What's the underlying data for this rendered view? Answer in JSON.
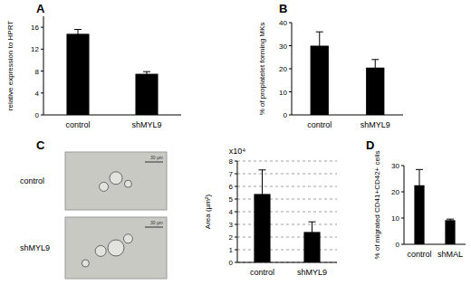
{
  "panel_labels": [
    "A",
    "B",
    "C",
    "D"
  ],
  "micrographs": {
    "labels": [
      "control",
      "shMYL9"
    ],
    "scale_bar": "30 µm"
  },
  "chart_data": [
    {
      "type": "bar",
      "y_label": "relative expression to HPRT",
      "categories": [
        "control",
        "shMYL9"
      ],
      "values": [
        14.8,
        7.5
      ],
      "errors": [
        0.8,
        0.4
      ],
      "color": "#000000",
      "ylim": [
        0,
        18
      ],
      "yticks": [
        0,
        4,
        8,
        12,
        16
      ],
      "grid": false
    },
    {
      "type": "bar",
      "y_label": "% of proplatelet forming MKs",
      "categories": [
        "control",
        "shMYL9"
      ],
      "values": [
        30,
        20.5
      ],
      "errors": [
        6,
        3.5
      ],
      "color": "#000000",
      "ylim": [
        0,
        40
      ],
      "yticks": [
        0,
        10,
        20,
        30,
        40
      ],
      "grid": false
    },
    {
      "type": "bar",
      "y_label": "Area (µm²)",
      "annotation": "x10⁴",
      "categories": [
        "control",
        "shMYL9"
      ],
      "values": [
        5.4,
        2.4
      ],
      "errors": [
        1.9,
        0.8
      ],
      "color": "#000000",
      "ylim": [
        0,
        8
      ],
      "yticks": [
        0,
        1,
        2,
        3,
        4,
        5,
        6,
        7,
        8
      ],
      "grid": true
    },
    {
      "type": "bar",
      "y_label": "% of migrated CD41+CD42+ cells",
      "categories": [
        "control",
        "shMAL"
      ],
      "values": [
        22.5,
        9.2
      ],
      "errors": [
        6,
        0.4
      ],
      "color": "#000000",
      "ylim": [
        0,
        30
      ],
      "yticks": [
        0,
        10,
        20,
        30
      ],
      "grid": false
    }
  ]
}
